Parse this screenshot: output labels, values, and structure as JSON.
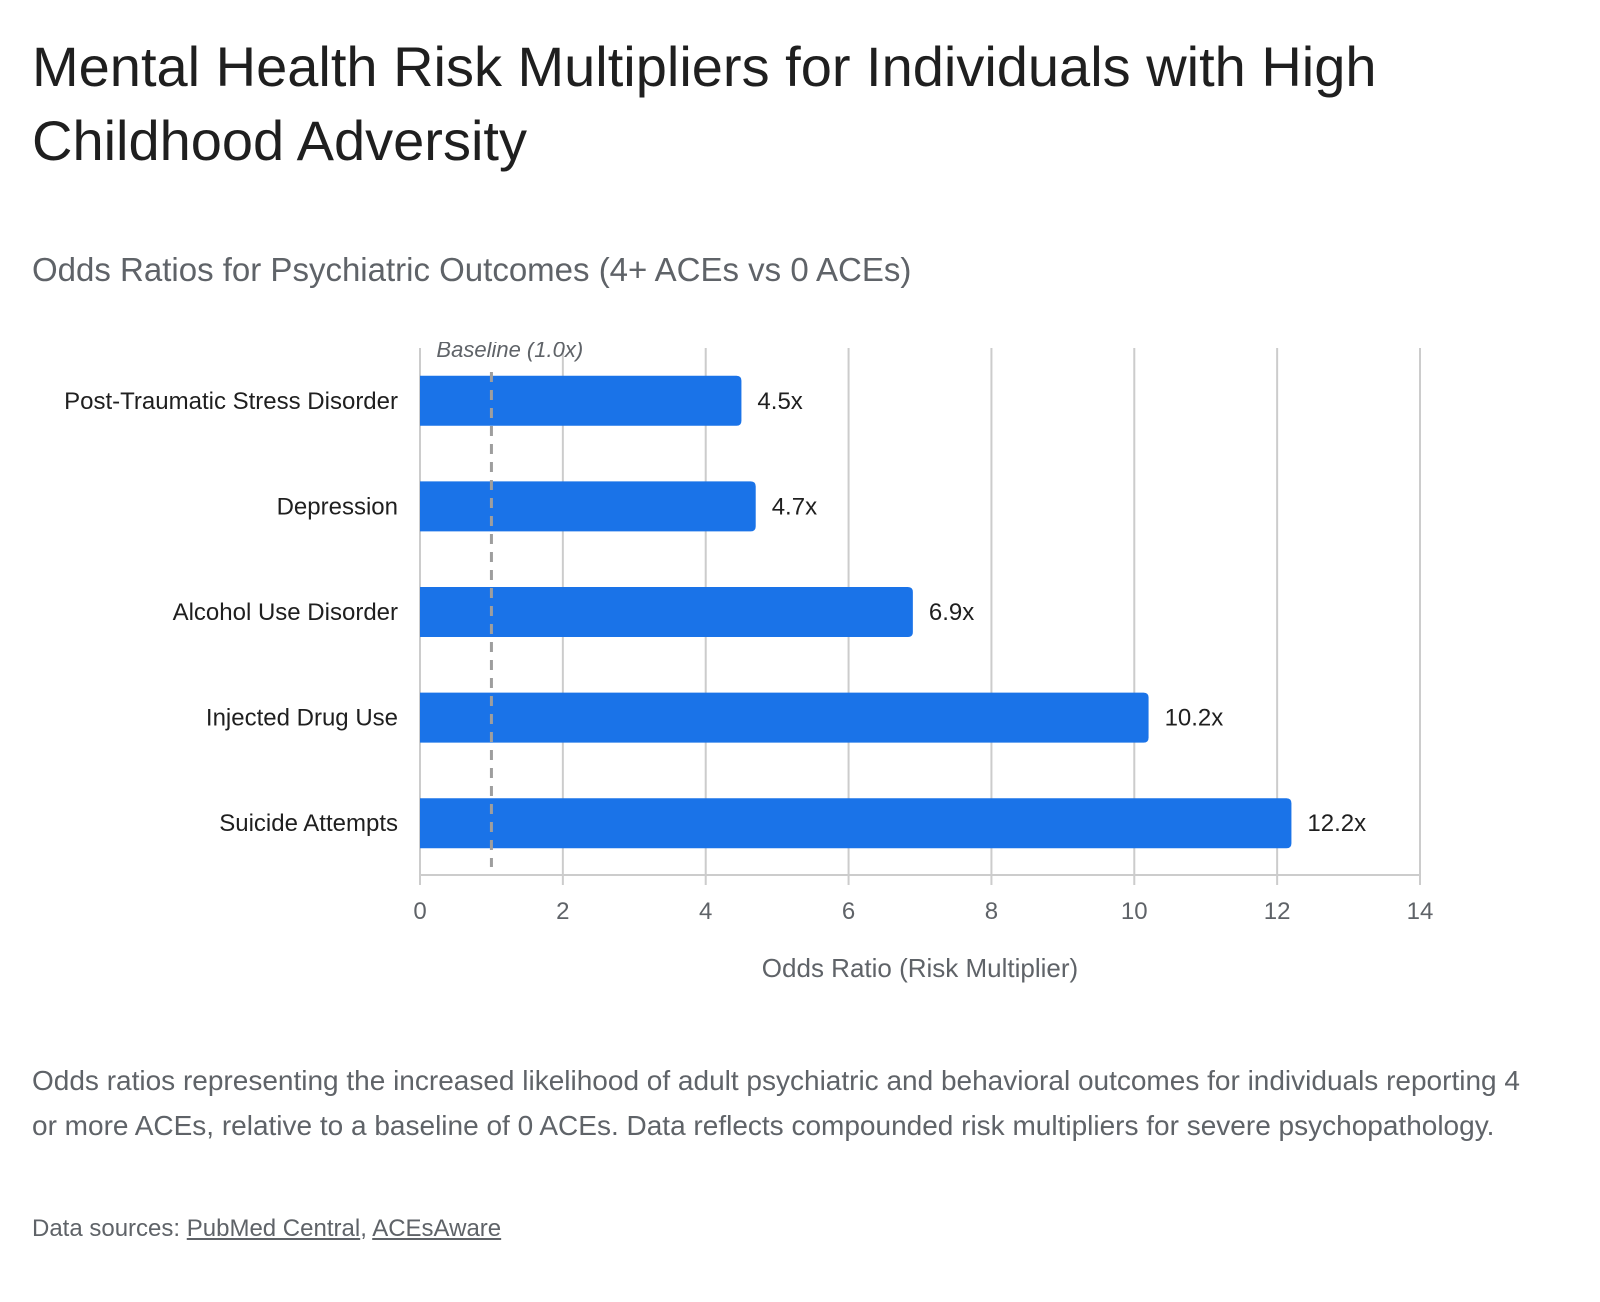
{
  "page": {
    "title": "Mental Health Risk Multipliers for Individuals with High Childhood Adversity",
    "subtitle": "Odds Ratios for Psychiatric Outcomes (4+ ACEs vs 0 ACEs)",
    "description": "Odds ratios representing the increased likelihood of adult psychiatric and behavioral outcomes for individuals reporting 4 or more ACEs, relative to a baseline of 0 ACEs. Data reflects compounded risk multipliers for severe psychopathology.",
    "sources_label": "Data sources:",
    "sources_separator": ",",
    "sources": [
      "PubMed Central",
      "ACEsAware"
    ]
  },
  "chart_data": {
    "type": "bar",
    "orientation": "horizontal",
    "categories": [
      "Post-Traumatic Stress Disorder",
      "Depression",
      "Alcohol Use Disorder",
      "Injected Drug Use",
      "Suicide Attempts"
    ],
    "values": [
      4.5,
      4.7,
      6.9,
      10.2,
      12.2
    ],
    "data_labels": [
      "4.5x",
      "4.7x",
      "6.9x",
      "10.2x",
      "12.2x"
    ],
    "xlabel": "Odds Ratio (Risk Multiplier)",
    "ylabel": "",
    "xlim": [
      0,
      14
    ],
    "xticks": [
      0,
      2,
      4,
      6,
      8,
      10,
      12,
      14
    ],
    "grid": true,
    "legend": "none",
    "reference_line": {
      "value": 1.0,
      "label": "Baseline (1.0x)",
      "style": "dashed"
    },
    "colors": {
      "bar": "#1a73e8",
      "grid": "#cccccc",
      "reference": "#9e9e9e"
    }
  }
}
